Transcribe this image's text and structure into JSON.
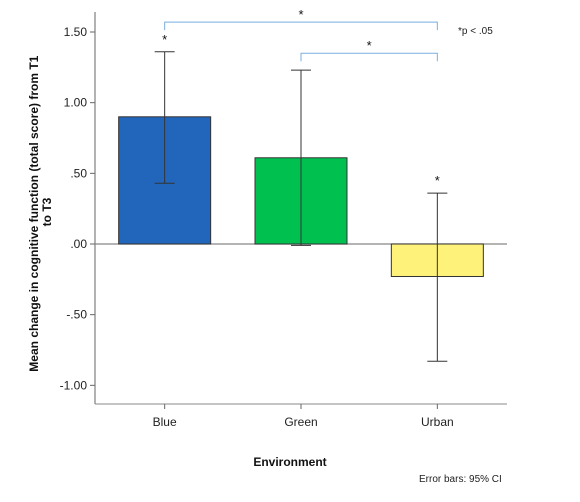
{
  "chart_data": {
    "type": "bar",
    "categories": [
      "Blue",
      "Green",
      "Urban"
    ],
    "values": [
      0.9,
      0.61,
      -0.23
    ],
    "ci_upper": [
      1.36,
      1.23,
      0.36
    ],
    "ci_lower": [
      0.43,
      -0.01,
      -0.83
    ],
    "colors": [
      "#2266bb",
      "#00c050",
      "#fff27a"
    ],
    "bar_significance": [
      "*",
      "",
      "*"
    ],
    "xlabel": "Environment",
    "ylabel": "Mean change in cognitive function (total score) from T1 to T3",
    "ylim": [
      -1.1,
      1.6
    ],
    "yticks": [
      1.5,
      1.0,
      0.5,
      0.0,
      -0.5,
      -1.0
    ],
    "ytick_labels": [
      "1.50",
      "1.00",
      ".50",
      ".00",
      "-.50",
      "-1.00"
    ],
    "zero_line": true,
    "grid": false,
    "brackets": [
      {
        "from": "Blue",
        "to": "Urban",
        "label": "*",
        "y": 1.57
      },
      {
        "from": "Green",
        "to": "Urban",
        "label": "*",
        "y": 1.35
      }
    ],
    "bracket_color": "#7aaee0",
    "significance_note": "*p < .05",
    "error_bars_note": "Error bars: 95% CI"
  }
}
